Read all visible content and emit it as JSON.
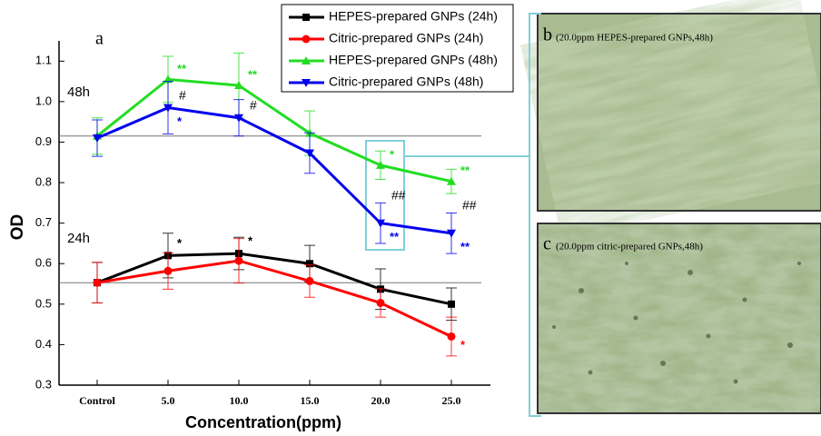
{
  "chart_data": {
    "type": "line",
    "panel_label": "a",
    "ylabel": "OD",
    "xlabel": "Concentration(ppm)",
    "categories": [
      "Control",
      "5.0",
      "10.0",
      "15.0",
      "20.0",
      "25.0"
    ],
    "ylim": [
      0.3,
      1.15
    ],
    "yticks": [
      0.3,
      0.4,
      0.5,
      0.6,
      0.7,
      0.8,
      0.9,
      {
        "value": 1,
        "label": "1.0"
      },
      1.1
    ],
    "reference_lines": [
      {
        "value": 0.915,
        "label": "48h"
      },
      {
        "value": 0.553,
        "label": "24h"
      }
    ],
    "legend": "top-right",
    "series": [
      {
        "name": "HEPES-prepared GNPs (24h)",
        "color": "#000000",
        "marker": "square",
        "values": [
          0.553,
          0.62,
          0.625,
          0.6,
          0.537,
          0.5
        ],
        "errors": [
          0.05,
          0.055,
          0.04,
          0.045,
          0.05,
          0.04
        ],
        "significance": [
          null,
          "*",
          "*",
          null,
          null,
          null
        ]
      },
      {
        "name": "Citric-prepared GNPs (24h)",
        "color": "#ff0000",
        "marker": "circle",
        "values": [
          0.553,
          0.582,
          0.607,
          0.557,
          0.503,
          0.42
        ],
        "errors": [
          0.05,
          0.045,
          0.055,
          0.04,
          0.035,
          0.048
        ],
        "significance": [
          null,
          null,
          null,
          null,
          null,
          "*"
        ]
      },
      {
        "name": "HEPES-prepared GNPs (48h)",
        "color": "#22dd22",
        "marker": "triangle-up",
        "values": [
          0.915,
          1.055,
          1.04,
          0.922,
          0.843,
          0.803
        ],
        "errors": [
          0.045,
          0.057,
          0.08,
          0.055,
          0.035,
          0.03
        ],
        "significance": [
          null,
          "**",
          "**",
          null,
          "*",
          "**"
        ]
      },
      {
        "name": "Citric-prepared GNPs (48h)",
        "color": "#0000ee",
        "marker": "triangle-down",
        "values": [
          0.91,
          0.985,
          0.96,
          0.873,
          0.7,
          0.675
        ],
        "errors": [
          0.045,
          0.065,
          0.045,
          0.05,
          0.05,
          0.05
        ],
        "significance": [
          null,
          "*",
          null,
          null,
          "**",
          "**"
        ],
        "hash": [
          null,
          "#",
          "#",
          null,
          "##",
          "##"
        ]
      }
    ]
  },
  "panels": [
    {
      "label": "b",
      "caption": "(20.0ppm HEPES-prepared GNPs,48h)"
    },
    {
      "label": "c",
      "caption": "(20.0ppm citric-prepared GNPs,48h)"
    }
  ]
}
